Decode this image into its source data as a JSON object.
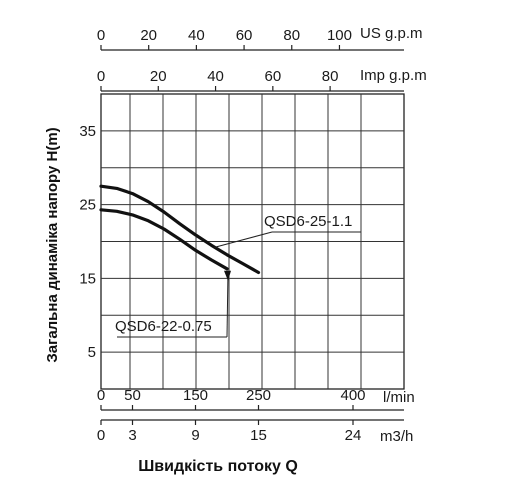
{
  "chart_data": {
    "type": "line",
    "ylabel": "Загальна динаміка напору H(m)",
    "xlabel": "Швидкість потоку Q",
    "ylim": [
      0,
      40
    ],
    "y_ticks": [
      "5",
      "15",
      "25",
      "35"
    ],
    "grid": true,
    "axes": {
      "lpm": {
        "unit": "l/min",
        "ticks": [
          "0",
          "50",
          "150",
          "250",
          "400"
        ]
      },
      "m3h": {
        "unit": "m3/h",
        "ticks": [
          "0",
          "3",
          "9",
          "15",
          "24"
        ]
      },
      "us_gpm": {
        "unit": "US g.p.m",
        "ticks": [
          "0",
          "20",
          "40",
          "60",
          "80",
          "100"
        ]
      },
      "imp_gpm": {
        "unit": "Imp g.p.m",
        "ticks": [
          "0",
          "20",
          "40",
          "60",
          "80"
        ]
      }
    },
    "series": [
      {
        "name": "QSD6-25-1.1",
        "x_lpm": [
          0,
          25,
          50,
          75,
          100,
          125,
          150,
          175,
          200,
          225,
          250
        ],
        "y": [
          27.5,
          27.2,
          26.5,
          25.4,
          24.0,
          22.4,
          20.9,
          19.5,
          18.2,
          17.0,
          15.8
        ]
      },
      {
        "name": "QSD6-22-0.75",
        "x_lpm": [
          0,
          25,
          50,
          75,
          100,
          125,
          150,
          175,
          200
        ],
        "y": [
          24.3,
          24.1,
          23.6,
          22.8,
          21.7,
          20.3,
          18.8,
          17.5,
          16.3
        ]
      }
    ]
  }
}
